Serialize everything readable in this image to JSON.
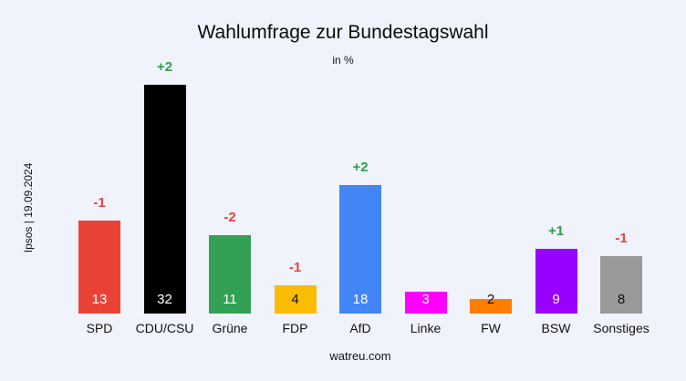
{
  "title": "Wahlumfrage zur Bundestagswahl",
  "subtitle": "in %",
  "source_label": "Ipsos | 19.09.2024",
  "footer": "watreu.com",
  "chart_data": {
    "type": "bar",
    "title": "Wahlumfrage zur Bundestagswahl",
    "subtitle": "in %",
    "unit": "%",
    "source": "Ipsos | 19.09.2024",
    "watermark": "watreu.com",
    "ylim": [
      0,
      34
    ],
    "grid": false,
    "legend": "none",
    "background_color": "#f0f2fc",
    "categories": [
      "SPD",
      "CDU/CSU",
      "Grüne",
      "FDP",
      "AfD",
      "Linke",
      "FW",
      "BSW",
      "Sonstiges"
    ],
    "values": [
      13,
      32,
      11,
      4,
      18,
      3,
      2,
      9,
      8
    ],
    "changes": [
      "-1",
      "+2",
      "-2",
      "-1",
      "+2",
      "",
      "",
      "+1",
      "-1"
    ],
    "bar_colors": [
      "#e94335",
      "#000000",
      "#34a053",
      "#fbbc04",
      "#4285f4",
      "#ff00ff",
      "#ff7d00",
      "#9900ff",
      "#999999"
    ],
    "value_label_colors": [
      "#ffffff",
      "#ffffff",
      "#ffffff",
      "#111111",
      "#ffffff",
      "#ffffff",
      "#111111",
      "#ffffff",
      "#111111"
    ],
    "change_up_color": "#2f9e4c",
    "change_down_color": "#e5413a"
  }
}
